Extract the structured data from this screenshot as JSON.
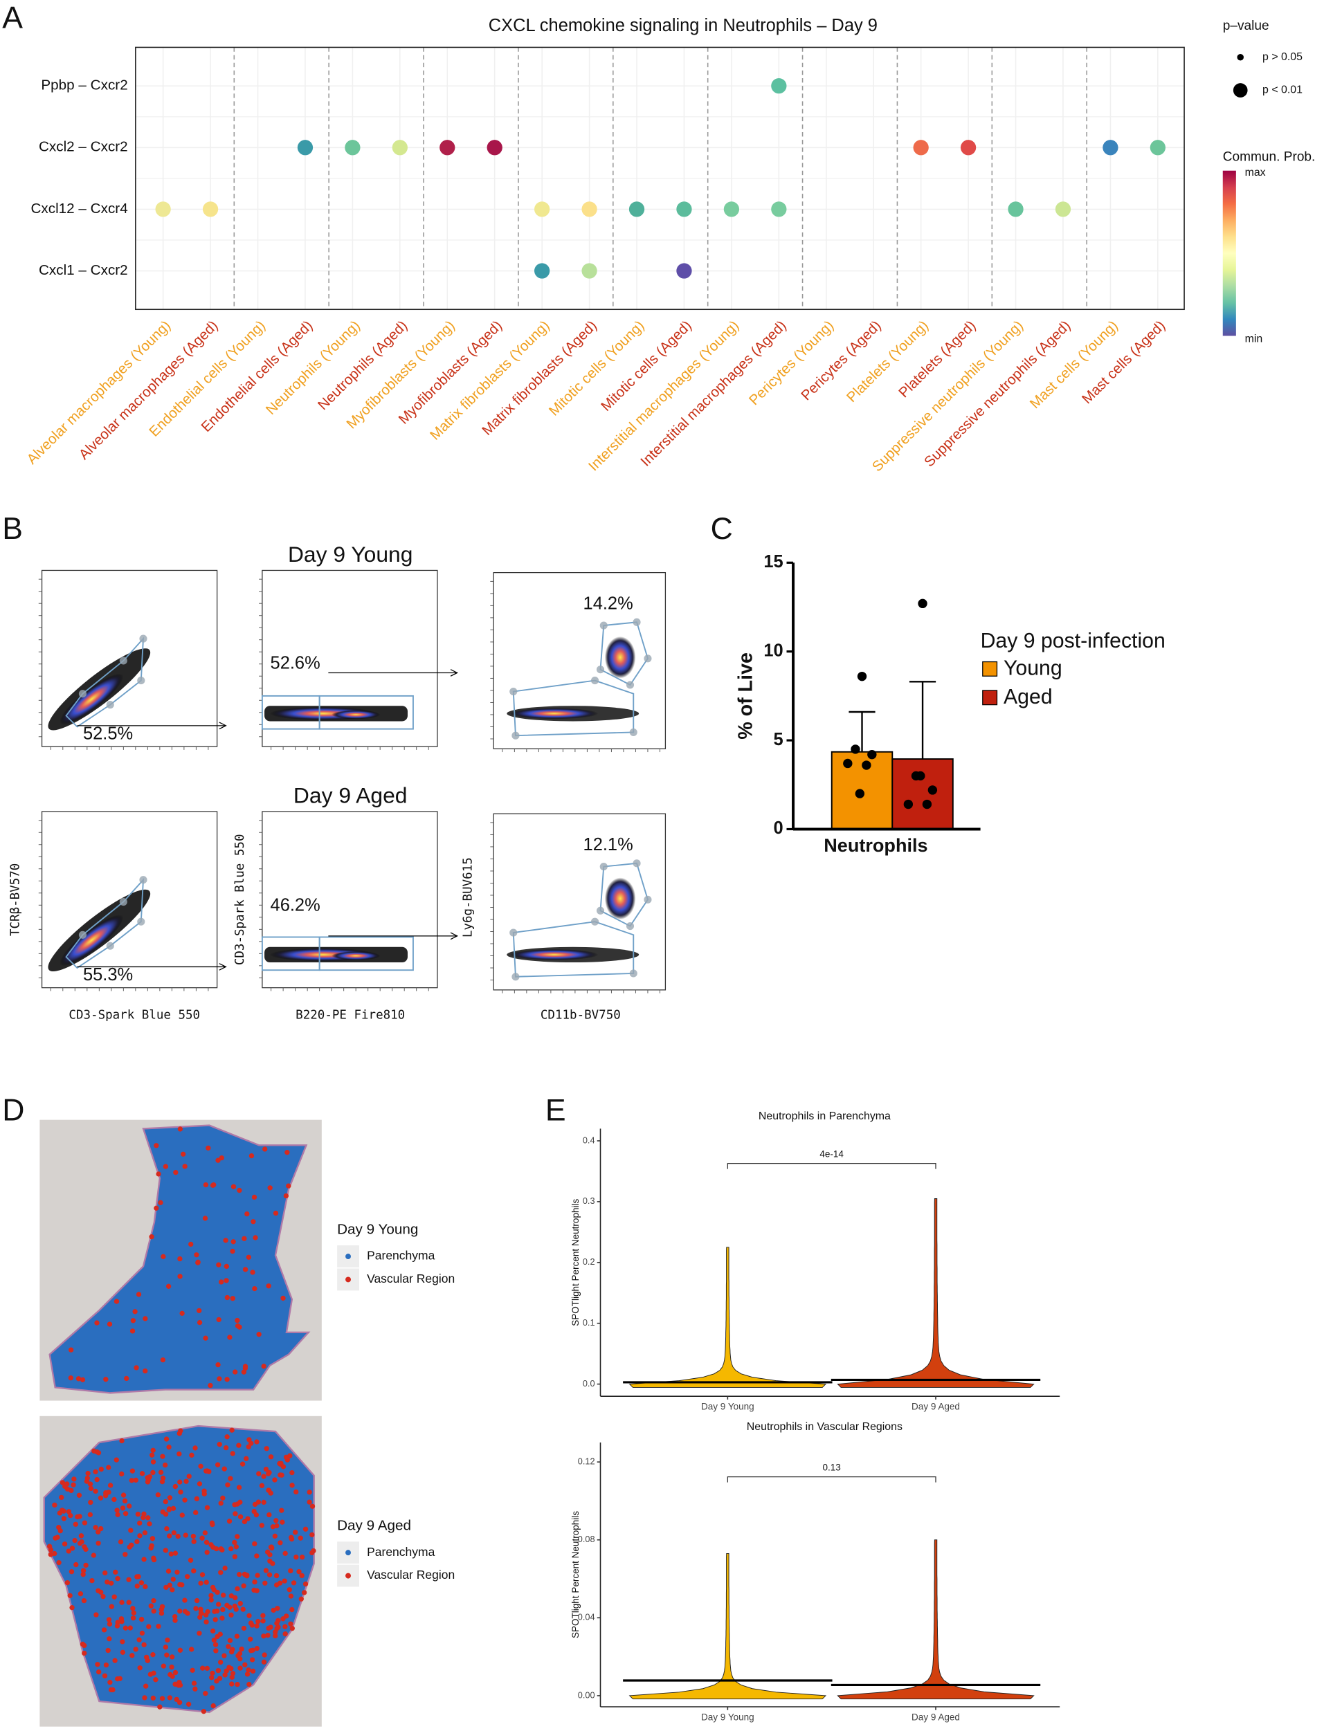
{
  "chart_data": [
    {
      "type": "dot",
      "panel": "A",
      "title": "CXCL chemokine signaling in Neutrophils – Day 9",
      "categories": [
        "Alveolar macrophages (Young)",
        "Alveolar macrophages (Aged)",
        "Endothelial cells (Young)",
        "Endothelial cells (Aged)",
        "Neutrophils (Young)",
        "Neutrophils (Aged)",
        "Myofibroblasts (Young)",
        "Myofibroblasts (Aged)",
        "Matrix fibroblasts (Young)",
        "Matrix fibroblasts (Aged)",
        "Mitotic cells (Young)",
        "Mitotic cells (Aged)",
        "Interstitial macrophages (Young)",
        "Interstitial macrophages (Aged)",
        "Pericytes (Young)",
        "Pericytes (Aged)",
        "Platelets (Young)",
        "Platelets (Aged)",
        "Suppressive neutrophils (Young)",
        "Suppressive neutrophils (Aged)",
        "Mast cells (Young)",
        "Mast cells (Aged)"
      ],
      "category_colors": [
        "#f0a020",
        "#c83218",
        "#f0a020",
        "#c83218",
        "#f0a020",
        "#c83218",
        "#f0a020",
        "#c83218",
        "#f0a020",
        "#c83218",
        "#f0a020",
        "#c83218",
        "#f0a020",
        "#c83218",
        "#f0a020",
        "#c83218",
        "#f0a020",
        "#c83218",
        "#f0a020",
        "#c83218",
        "#f0a020",
        "#c83218"
      ],
      "rows": [
        "Ppbp  – Cxcr2",
        "Cxcl2  – Cxcr2",
        "Cxcl12  – Cxcr4",
        "Cxcl1  – Cxcr2"
      ],
      "points": [
        {
          "row": 0,
          "col": 13,
          "color": "#5cc0a0"
        },
        {
          "row": 1,
          "col": 3,
          "color": "#3a9aa8"
        },
        {
          "row": 1,
          "col": 4,
          "color": "#6cc59a"
        },
        {
          "row": 1,
          "col": 5,
          "color": "#d4e890"
        },
        {
          "row": 1,
          "col": 6,
          "color": "#b0204a"
        },
        {
          "row": 1,
          "col": 7,
          "color": "#a8164a"
        },
        {
          "row": 1,
          "col": 16,
          "color": "#ee6a4a"
        },
        {
          "row": 1,
          "col": 17,
          "color": "#e04a48"
        },
        {
          "row": 1,
          "col": 20,
          "color": "#3a84bc"
        },
        {
          "row": 1,
          "col": 21,
          "color": "#6cc59a"
        },
        {
          "row": 2,
          "col": 0,
          "color": "#eee894"
        },
        {
          "row": 2,
          "col": 1,
          "color": "#f6e48c"
        },
        {
          "row": 2,
          "col": 8,
          "color": "#f0e890"
        },
        {
          "row": 2,
          "col": 9,
          "color": "#fbe08a"
        },
        {
          "row": 2,
          "col": 10,
          "color": "#4fb09a"
        },
        {
          "row": 2,
          "col": 11,
          "color": "#5cbc9c"
        },
        {
          "row": 2,
          "col": 12,
          "color": "#78cc9e"
        },
        {
          "row": 2,
          "col": 13,
          "color": "#78cc9e"
        },
        {
          "row": 2,
          "col": 18,
          "color": "#68c49c"
        },
        {
          "row": 2,
          "col": 19,
          "color": "#cce694"
        },
        {
          "row": 3,
          "col": 8,
          "color": "#3a9aa8"
        },
        {
          "row": 3,
          "col": 9,
          "color": "#b8e09a"
        },
        {
          "row": 3,
          "col": 11,
          "color": "#5e4ea8"
        }
      ],
      "size_legend": {
        "title": "p–value",
        "labels": [
          "p > 0.05",
          "p < 0.01"
        ]
      },
      "color_legend": {
        "title": "Commun. Prob.",
        "labels": [
          "max",
          "min"
        ],
        "colors": [
          "#9e0142",
          "#d53e4f",
          "#f46d43",
          "#fdae61",
          "#fee08b",
          "#ffffbf",
          "#e6f598",
          "#abdda4",
          "#66c2a5",
          "#3288bd",
          "#5e4fa2"
        ]
      }
    },
    {
      "type": "bar",
      "panel": "C",
      "categories": [
        "Neutrophils"
      ],
      "ylabel": "% of Live",
      "ylim": [
        0,
        15
      ],
      "yticks": [
        0,
        5,
        10,
        15
      ],
      "legend_title": "Day 9 post-infection",
      "series": [
        {
          "name": "Young",
          "color": "#f39200",
          "values": [
            4.35
          ],
          "errors": [
            2.25
          ],
          "points": [
            8.6,
            4.5,
            4.2,
            3.7,
            3.6,
            2.0
          ]
        },
        {
          "name": "Aged",
          "color": "#c0200e",
          "values": [
            3.95
          ],
          "errors": [
            4.35
          ],
          "points": [
            12.7,
            3.0,
            2.2,
            1.4,
            1.4,
            3.0
          ]
        }
      ]
    },
    {
      "type": "violin",
      "panel": "E",
      "title": "Neutrophils in Parenchyma",
      "ylabel": "SPOTlight Percent Neutrophils",
      "categories": [
        "Day 9 Young",
        "Day 9 Aged"
      ],
      "colors": [
        "#f5b800",
        "#d2400e"
      ],
      "values": [
        0.003,
        0.007
      ],
      "max": [
        0.225,
        0.305
      ],
      "ylim": [
        -0.02,
        0.42
      ],
      "yticks": [
        {
          "value": 0,
          "label": "0.0"
        },
        {
          "value": 0.1,
          "label": "0.1"
        },
        {
          "value": 0.2,
          "label": "0.2"
        },
        {
          "value": 0.3,
          "label": "0.3"
        },
        {
          "value": 0.4,
          "label": "0.4"
        }
      ],
      "annotation": "4e-14"
    },
    {
      "type": "violin",
      "title": "Neutrophils in Vascular Regions",
      "ylabel": "SPOTlight Percent Neutrophils",
      "categories": [
        "Day 9 Young",
        "Day 9 Aged"
      ],
      "colors": [
        "#f5b800",
        "#d2400e"
      ],
      "values": [
        0.0078,
        0.0055
      ],
      "max": [
        0.073,
        0.08
      ],
      "ylim": [
        -0.0057,
        0.13
      ],
      "yticks": [
        {
          "value": 0,
          "label": "0.00"
        },
        {
          "value": 0.04,
          "label": "0.04"
        },
        {
          "value": 0.08,
          "label": "0.08"
        },
        {
          "value": 0.12,
          "label": "0.12"
        }
      ],
      "annotation": "0.13"
    }
  ],
  "flow_panel": {
    "panel": "B",
    "plots": [
      {
        "title": "Day 9 Young",
        "gates": [
          "52.5%",
          "52.6%",
          "14.2%"
        ]
      },
      {
        "title": "Day 9 Aged",
        "gates": [
          "55.3%",
          "46.2%",
          "12.1%"
        ]
      }
    ],
    "axis_labels": {
      "x": [
        "CD3-Spark Blue 550",
        "B220-PE Fire810",
        "CD11b-BV750"
      ],
      "y": [
        "TCRβ-BV570",
        "CD3-Spark Blue 550",
        "Ly6g-BUV615"
      ]
    }
  },
  "spatial_panel": {
    "panel": "D",
    "samples": [
      {
        "title": "Day 9 Young",
        "legend": [
          {
            "name": "Parenchyma",
            "color": "#2a6ebf"
          },
          {
            "name": "Vascular Region",
            "color": "#d62a1e"
          }
        ]
      },
      {
        "title": "Day 9 Aged",
        "legend": [
          {
            "name": "Parenchyma",
            "color": "#2a6ebf"
          },
          {
            "name": "Vascular Region",
            "color": "#d62a1e"
          }
        ]
      }
    ]
  }
}
